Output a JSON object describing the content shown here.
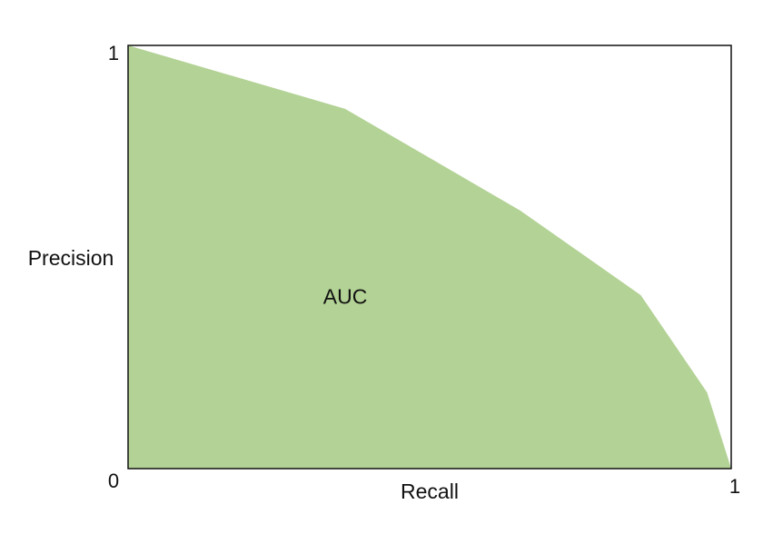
{
  "chart_data": {
    "type": "area",
    "xlabel": "Recall",
    "ylabel": "Precision",
    "xlim": [
      0,
      1
    ],
    "ylim": [
      0,
      1
    ],
    "x_ticks": [
      "0",
      "1"
    ],
    "y_ticks": [
      "0",
      "1"
    ],
    "grid": false,
    "fill_color": "#b3d295",
    "frame_color": "#111111",
    "annotation": "AUC",
    "annotation_position": {
      "x": 0.36,
      "y": 0.39
    },
    "series": [
      {
        "x": [
          0,
          0.36,
          0.65,
          0.85,
          0.96,
          1.0
        ],
        "y": [
          1.0,
          0.85,
          0.61,
          0.41,
          0.18,
          0.0
        ]
      }
    ]
  }
}
